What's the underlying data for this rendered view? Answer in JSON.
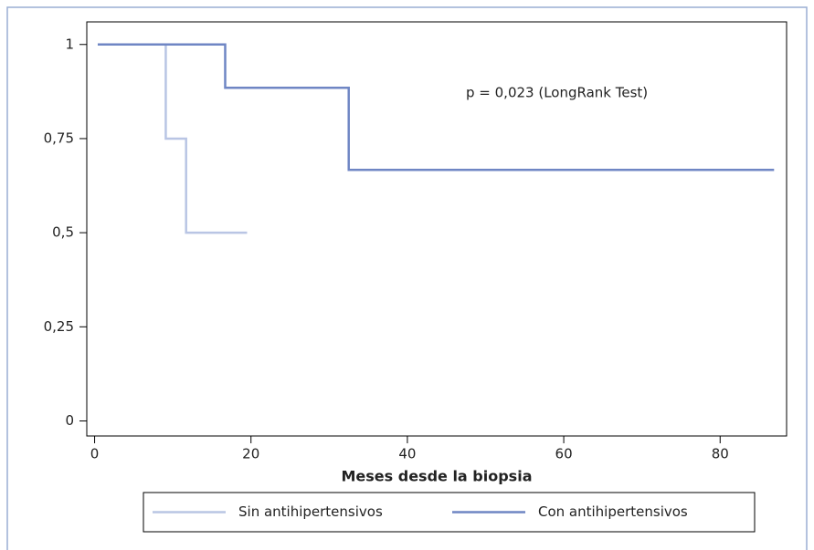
{
  "chart_data": {
    "type": "step",
    "xlabel": "Meses desde la biopsia",
    "annotation": "p = 0,023 (LongRank Test)",
    "xlim": [
      -1,
      88.5
    ],
    "xticks": [
      0,
      20,
      40,
      60,
      80
    ],
    "ylim": [
      -0.04,
      1.06
    ],
    "yticks": [
      0,
      {
        "value": 0.25,
        "label": "0,25"
      },
      {
        "value": 0.5,
        "label": "0,5"
      },
      {
        "value": 0.75,
        "label": "0,75"
      },
      1
    ],
    "legend": "bottom",
    "series": [
      {
        "name": "Sin antihipertensivos",
        "color": "#b9c5e4",
        "x": [
          0.4,
          9.1,
          11.7,
          19.5
        ],
        "values": [
          1,
          0.75,
          0.5,
          0.5
        ]
      },
      {
        "name": "Con antihipertensivos",
        "color": "#6f86c4",
        "x": [
          0.4,
          16.7,
          32.5,
          86.9
        ],
        "values": [
          1,
          0.885,
          0.667,
          0.667
        ]
      }
    ]
  }
}
